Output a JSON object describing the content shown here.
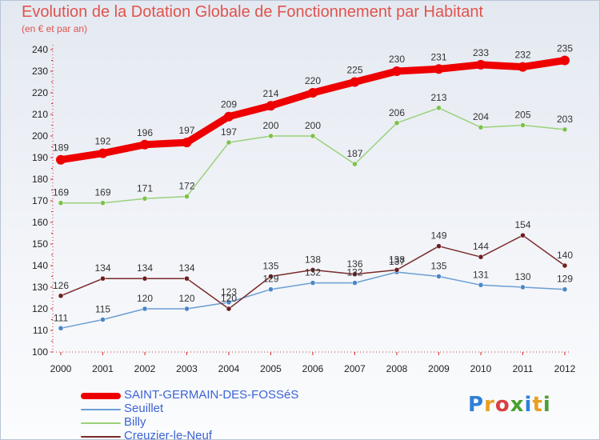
{
  "header": {
    "title": "Evolution de la Dotation Globale de Fonctionnement par Habitant",
    "subtitle": "(en € et par an)"
  },
  "logo": {
    "text": "Proxiti",
    "letter_colors": [
      "#2f7fd8",
      "#e8a020",
      "#d84040",
      "#4aa030",
      "#2f7fd8",
      "#e8a020",
      "#4aa030"
    ]
  },
  "colors": {
    "axis": "#d62828",
    "grid": "#d2d8e2"
  },
  "chart_data": {
    "type": "line",
    "title": "Evolution de la Dotation Globale de Fonctionnement par Habitant",
    "subtitle": "(en € et par an)",
    "x": [
      "2000",
      "2001",
      "2002",
      "2003",
      "2004",
      "2005",
      "2006",
      "2007",
      "2008",
      "2009",
      "2010",
      "2011",
      "2012"
    ],
    "ylim": [
      100,
      240
    ],
    "yticks": [
      100,
      110,
      120,
      130,
      140,
      150,
      160,
      170,
      180,
      190,
      200,
      210,
      220,
      230,
      240
    ],
    "grid": false,
    "legend_position": "bottom-left",
    "series": [
      {
        "name": "SAINT-GERMAIN-DES-FOSSéS",
        "values": [
          189,
          192,
          196,
          197,
          209,
          214,
          220,
          225,
          230,
          231,
          233,
          232,
          235
        ],
        "color": "#ee0000",
        "marker_color": "#ee0000"
      },
      {
        "name": "Seuillet",
        "values": [
          111,
          115,
          120,
          120,
          123,
          129,
          132,
          132,
          137,
          135,
          131,
          130,
          129
        ],
        "color": "#6c9ed2",
        "marker_color": "#4a86c8"
      },
      {
        "name": "Billy",
        "values": [
          169,
          169,
          171,
          172,
          197,
          200,
          200,
          187,
          206,
          213,
          204,
          205,
          203
        ],
        "color": "#9bd17a",
        "marker_color": "#7cc14a"
      },
      {
        "name": "Creuzier-le-Neuf",
        "values": [
          126,
          134,
          134,
          134,
          120,
          135,
          138,
          136,
          138,
          149,
          144,
          154,
          140
        ],
        "color": "#7a2a2a",
        "marker_color": "#6b1e1e"
      }
    ]
  }
}
